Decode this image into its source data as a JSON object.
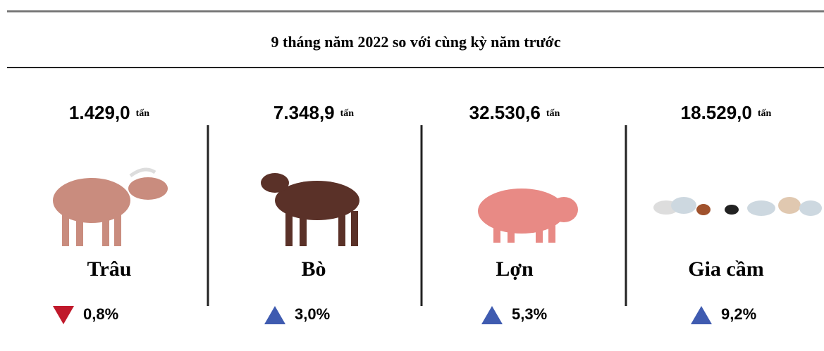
{
  "title": "9 tháng năm 2022 so với cùng kỳ năm trước",
  "items": [
    {
      "value": "1.429,0",
      "unit": "tấn",
      "name": "Trâu",
      "change": "0,8%",
      "direction": "down"
    },
    {
      "value": "7.348,9",
      "unit": "tấn",
      "name": "Bò",
      "change": "3,0%",
      "direction": "up"
    },
    {
      "value": "32.530,6",
      "unit": "tấn",
      "name": "Lợn",
      "change": "5,3%",
      "direction": "up"
    },
    {
      "value": "18.529,0",
      "unit": "tấn",
      "name": "Gia cầm",
      "change": "9,2%",
      "direction": "up"
    }
  ],
  "colors": {
    "up": "#3f5bb0",
    "down": "#c0192b"
  }
}
